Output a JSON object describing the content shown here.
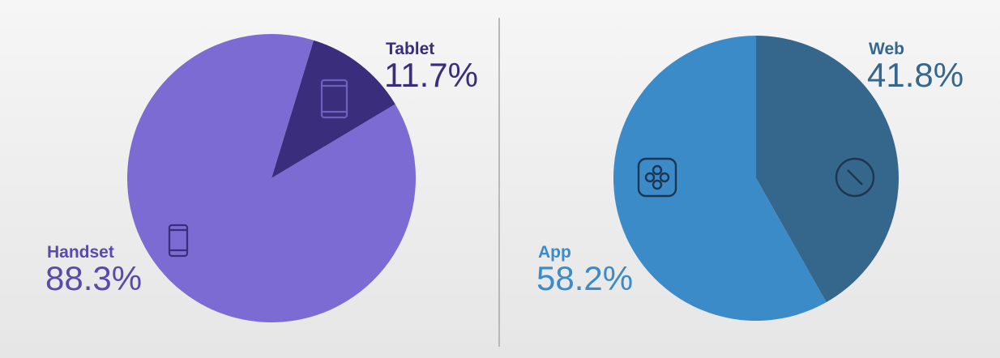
{
  "chart_data": [
    {
      "type": "pie",
      "slices": [
        {
          "label": "Tablet",
          "value": 11.7,
          "display": "11.7%",
          "color": "#3a2e7c",
          "icon": "tablet-icon"
        },
        {
          "label": "Handset",
          "value": 88.3,
          "display": "88.3%",
          "color": "#7b6bd3",
          "icon": "smartphone-icon"
        }
      ],
      "label_color": "#5a4aad",
      "tablet_label_color": "#3a2e7c"
    },
    {
      "type": "pie",
      "slices": [
        {
          "label": "Web",
          "value": 41.8,
          "display": "41.8%",
          "color": "#35678c",
          "icon": "compass-icon"
        },
        {
          "label": "App",
          "value": 58.2,
          "display": "58.2%",
          "color": "#3b8bc9",
          "icon": "app-icon"
        }
      ],
      "web_label_color": "#35678c",
      "app_label_color": "#3b8bc9"
    }
  ],
  "divider_color": "#b8b8b8"
}
